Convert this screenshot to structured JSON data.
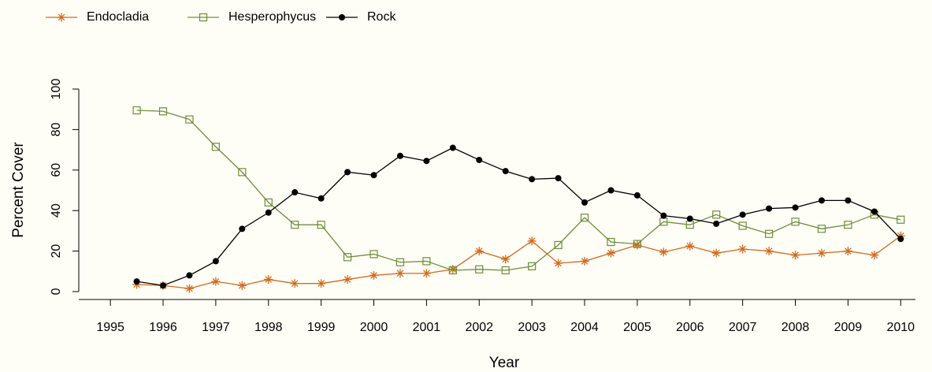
{
  "chart_data": {
    "type": "line",
    "x_label": "Year",
    "y_label": "Percent Cover",
    "x": [
      1995.5,
      1996,
      1996.5,
      1997,
      1997.5,
      1998,
      1998.5,
      1999,
      1999.5,
      2000,
      2000.5,
      2001,
      2001.5,
      2002,
      2002.5,
      2003,
      2003.5,
      2004,
      2004.5,
      2005,
      2005.5,
      2006,
      2006.5,
      2007,
      2007.5,
      2008,
      2008.5,
      2009,
      2009.5,
      2010
    ],
    "series": [
      {
        "name": "Endocladia",
        "color": "#d2691e",
        "marker": "asterisk",
        "values": [
          3.5,
          3,
          1.5,
          5,
          3,
          6,
          4,
          4,
          6,
          8,
          9,
          9,
          11,
          20,
          16,
          25,
          14,
          15,
          19,
          23,
          19.5,
          22.5,
          19,
          21,
          20,
          18,
          19,
          20,
          18,
          27.5
        ]
      },
      {
        "name": "Hesperophycus",
        "color": "#6b8e3a",
        "marker": "open-square",
        "values": [
          89.5,
          89,
          85,
          71.5,
          59,
          44,
          33,
          33,
          17,
          18.5,
          14.5,
          15,
          10.5,
          11,
          10.5,
          12.5,
          23,
          36.5,
          24.5,
          23.5,
          34.5,
          33,
          38,
          32.5,
          28.5,
          34.5,
          31,
          33,
          38,
          35.5
        ]
      },
      {
        "name": "Rock",
        "color": "#000000",
        "marker": "filled-circle",
        "values": [
          5,
          3,
          8,
          15,
          31,
          39,
          49,
          46,
          59,
          57.5,
          67,
          64.5,
          71,
          65,
          59.5,
          55.5,
          56,
          44,
          50,
          47.5,
          37.5,
          36,
          33.5,
          38,
          41,
          41.5,
          45,
          45,
          39.5,
          26
        ]
      }
    ],
    "xlim": [
      1994.4,
      2010.28
    ],
    "xticks": [
      1995,
      1996,
      1997,
      1998,
      1999,
      2000,
      2001,
      2002,
      2003,
      2004,
      2005,
      2006,
      2007,
      2008,
      2009,
      2010
    ],
    "ylim": [
      -3.9,
      100
    ],
    "yticks": [
      0,
      20,
      40,
      60,
      80,
      100
    ],
    "legend": "top-left",
    "grid": false
  }
}
